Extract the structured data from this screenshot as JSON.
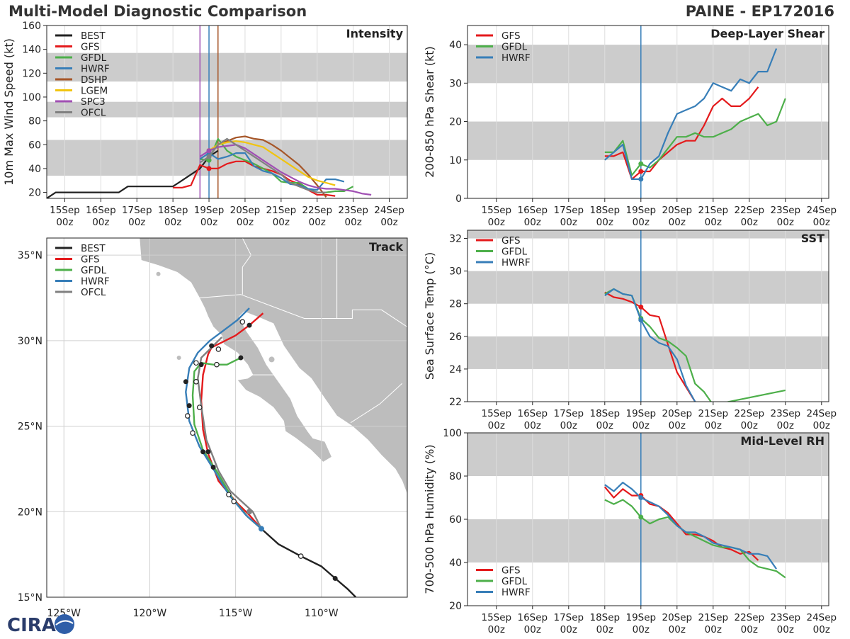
{
  "header": {
    "title": "Multi-Model Diagnostic Comparison",
    "storm": "PAINE - EP172016"
  },
  "logo": {
    "text": "CIRA"
  },
  "colors": {
    "BEST": "#222222",
    "GFS": "#e41a1c",
    "GFDL": "#4daf4a",
    "HWRF": "#377eb8",
    "DSHP": "#a65628",
    "LGEM": "#f1c40f",
    "SPC3": "#a04fb3",
    "OFCL": "#808080"
  },
  "time_ticks": [
    "15Sep\n00z",
    "16Sep\n00z",
    "17Sep\n00z",
    "18Sep\n00z",
    "19Sep\n00z",
    "20Sep\n00z",
    "21Sep\n00z",
    "22Sep\n00z",
    "23Sep\n00z",
    "24Sep\n00z"
  ],
  "chart_data": [
    {
      "id": "intensity",
      "type": "line",
      "title": "Intensity",
      "xlabel": "",
      "ylabel": "10m Max Wind Speed (kt)",
      "xlim": [
        -0.5,
        9.5
      ],
      "ylim": [
        15,
        160
      ],
      "yticks": [
        20,
        40,
        60,
        80,
        100,
        120,
        140,
        160
      ],
      "bands": [
        [
          34,
          64
        ],
        [
          83,
          96
        ],
        [
          113,
          137
        ]
      ],
      "vlines": [
        {
          "x": 3.75,
          "color": "#a04fb3"
        },
        {
          "x": 4.0,
          "color": "#377eb8"
        },
        {
          "x": 4.25,
          "color": "#a65628"
        }
      ],
      "legend": [
        "BEST",
        "GFS",
        "GFDL",
        "HWRF",
        "DSHP",
        "LGEM",
        "SPC3",
        "OFCL"
      ],
      "series": [
        {
          "name": "BEST",
          "x": [
            -0.5,
            -0.25,
            0,
            0.25,
            0.5,
            0.75,
            1,
            1.25,
            1.5,
            1.75,
            2,
            2.25,
            2.5,
            2.75,
            3,
            3.25,
            3.5,
            3.75,
            4,
            4.25
          ],
          "y": [
            15,
            20,
            20,
            20,
            20,
            20,
            20,
            20,
            20,
            25,
            25,
            25,
            25,
            25,
            25,
            30,
            35,
            40,
            50,
            55
          ]
        },
        {
          "name": "GFS",
          "x": [
            3,
            3.25,
            3.5,
            3.75,
            4,
            4.25,
            4.5,
            4.75,
            5,
            5.25,
            5.5,
            5.75,
            6,
            6.25,
            6.5,
            6.75,
            7,
            7.25,
            7.5
          ],
          "y": [
            24,
            24,
            26,
            43,
            40,
            40,
            44,
            46,
            46,
            42,
            40,
            38,
            35,
            30,
            27,
            22,
            18,
            18,
            17
          ]
        },
        {
          "name": "GFDL",
          "x": [
            3.75,
            4,
            4.25,
            4.5,
            4.75,
            5,
            5.25,
            5.5,
            5.75,
            6,
            6.25,
            6.5,
            6.75,
            7,
            7.25,
            7.5,
            7.75,
            8
          ],
          "y": [
            48,
            47,
            65,
            55,
            50,
            47,
            44,
            40,
            36,
            29,
            28,
            28,
            23,
            20,
            20,
            21,
            21,
            25
          ]
        },
        {
          "name": "HWRF",
          "x": [
            3.75,
            4,
            4.25,
            4.5,
            4.75,
            5,
            5.25,
            5.5,
            5.75,
            6,
            6.25,
            6.5,
            6.75,
            7,
            7.25,
            7.5,
            7.75
          ],
          "y": [
            48,
            53,
            48,
            50,
            53,
            53,
            42,
            38,
            36,
            32,
            27,
            26,
            23,
            22,
            31,
            31,
            29
          ]
        },
        {
          "name": "DSHP",
          "x": [
            4,
            4.25,
            4.5,
            4.75,
            5,
            5.25,
            5.5,
            5.75,
            6,
            6.25,
            6.5,
            6.75,
            7,
            7.25
          ],
          "y": [
            55,
            60,
            63,
            66,
            67,
            65,
            64,
            60,
            55,
            49,
            43,
            35,
            26,
            16
          ]
        },
        {
          "name": "LGEM",
          "x": [
            4,
            4.25,
            4.5,
            4.75,
            5,
            5.25,
            5.5,
            5.75,
            6,
            6.25,
            6.5,
            6.75,
            7,
            7.25,
            7.5
          ],
          "y": [
            55,
            60,
            62,
            63,
            62,
            60,
            58,
            53,
            48,
            43,
            38,
            33,
            30,
            28,
            26
          ]
        },
        {
          "name": "SPC3",
          "x": [
            3.75,
            4,
            4.25,
            4.5,
            4.75,
            5,
            5.25,
            5.5,
            5.75,
            6,
            6.25,
            6.5,
            6.75,
            7,
            7.25,
            7.5,
            7.75,
            8,
            8.25,
            8.5
          ],
          "y": [
            50,
            55,
            58,
            59,
            60,
            57,
            52,
            47,
            42,
            37,
            33,
            29,
            26,
            24,
            23,
            23,
            22,
            21,
            19,
            18
          ]
        },
        {
          "name": "OFCL",
          "x": [
            3.75,
            4,
            4.25,
            4.5,
            4.75,
            5,
            5.25,
            5.5,
            5.75,
            6,
            6.25,
            6.5,
            6.75,
            7,
            7.25
          ],
          "y": [
            45,
            50,
            60,
            65,
            60,
            55,
            50,
            45,
            40,
            35,
            28,
            25,
            22,
            20,
            20
          ]
        }
      ]
    },
    {
      "id": "shear",
      "type": "line",
      "title": "Deep-Layer Shear",
      "xlabel": "",
      "ylabel": "200-850 hPa Shear (kt)",
      "xlim": [
        -0.8,
        9.2
      ],
      "ylim": [
        0,
        45
      ],
      "yticks": [
        0,
        10,
        20,
        30,
        40
      ],
      "bands": [
        [
          10,
          20
        ],
        [
          30,
          40
        ]
      ],
      "vlines": [
        {
          "x": 4.0,
          "color": "#377eb8"
        }
      ],
      "legend": [
        "GFS",
        "GFDL",
        "HWRF"
      ],
      "series": [
        {
          "name": "GFS",
          "x": [
            3,
            3.25,
            3.5,
            3.75,
            4,
            4.25,
            4.5,
            4.75,
            5,
            5.25,
            5.5,
            5.75,
            6,
            6.25,
            6.5,
            6.75,
            7,
            7.25
          ],
          "y": [
            11,
            11,
            12,
            5,
            7,
            7,
            10,
            12,
            14,
            15,
            15,
            19,
            24,
            26,
            24,
            24,
            26,
            29
          ]
        },
        {
          "name": "GFDL",
          "x": [
            3,
            3.25,
            3.5,
            3.75,
            4,
            4.25,
            4.5,
            4.75,
            5,
            5.25,
            5.5,
            5.75,
            6,
            6.25,
            6.5,
            6.75,
            7,
            7.25,
            7.5,
            7.75,
            8
          ],
          "y": [
            12,
            12,
            15,
            6,
            9,
            8,
            10,
            13,
            16,
            16,
            17,
            16,
            16,
            17,
            18,
            20,
            21,
            22,
            19,
            20,
            26
          ]
        },
        {
          "name": "HWRF",
          "x": [
            3,
            3.25,
            3.5,
            3.75,
            4,
            4.25,
            4.5,
            4.75,
            5,
            5.25,
            5.5,
            5.75,
            6,
            6.25,
            6.5,
            6.75,
            7,
            7.25,
            7.5,
            7.75
          ],
          "y": [
            10,
            12,
            14,
            5,
            5,
            9,
            11,
            17,
            22,
            23,
            24,
            26,
            30,
            29,
            28,
            31,
            30,
            33,
            33,
            39
          ]
        }
      ]
    },
    {
      "id": "sst",
      "type": "line",
      "title": "SST",
      "xlabel": "",
      "ylabel": "Sea Surface Temp (°C)",
      "xlim": [
        -0.8,
        9.2
      ],
      "ylim": [
        22,
        32.5
      ],
      "yticks": [
        22,
        24,
        26,
        28,
        30,
        32
      ],
      "bands": [
        [
          24,
          26
        ],
        [
          28,
          30
        ],
        [
          32,
          32.5
        ]
      ],
      "vlines": [
        {
          "x": 4.0,
          "color": "#377eb8"
        }
      ],
      "legend": [
        "GFS",
        "GFDL",
        "HWRF"
      ],
      "series": [
        {
          "name": "GFS",
          "x": [
            3,
            3.25,
            3.5,
            3.75,
            4,
            4.25,
            4.5,
            4.75,
            5,
            5.25,
            5.5
          ],
          "y": [
            28.7,
            28.4,
            28.3,
            28.1,
            27.8,
            27.3,
            27.2,
            25.5,
            23.8,
            22.9,
            22.0
          ]
        },
        {
          "name": "GFDL",
          "x": [
            3,
            3.25,
            3.5,
            3.75,
            4,
            4.25,
            4.5,
            4.75,
            5,
            5.25,
            5.5,
            5.75,
            6,
            8
          ],
          "y": [
            28.6,
            28.9,
            28.6,
            28.5,
            27.1,
            26.6,
            25.9,
            25.7,
            25.3,
            24.8,
            23.1,
            22.6,
            21.8,
            22.7
          ]
        },
        {
          "name": "HWRF",
          "x": [
            3,
            3.25,
            3.5,
            3.75,
            4,
            4.25,
            4.5,
            4.75,
            5,
            5.25,
            5.5
          ],
          "y": [
            28.5,
            28.9,
            28.6,
            28.5,
            27.0,
            26.0,
            25.6,
            25.4,
            24.6,
            23.0,
            22.0
          ]
        }
      ]
    },
    {
      "id": "rh",
      "type": "line",
      "title": "Mid-Level RH",
      "xlabel": "",
      "ylabel": "700-500 hPa Humidity (%)",
      "xlim": [
        -0.8,
        9.2
      ],
      "ylim": [
        20,
        100
      ],
      "yticks": [
        20,
        40,
        60,
        80,
        100
      ],
      "bands": [
        [
          40,
          60
        ],
        [
          80,
          100
        ]
      ],
      "vlines": [
        {
          "x": 4.0,
          "color": "#377eb8"
        }
      ],
      "legend": [
        "GFS",
        "GFDL",
        "HWRF"
      ],
      "legend_position": "lower-left",
      "series": [
        {
          "name": "GFS",
          "x": [
            3,
            3.25,
            3.5,
            3.75,
            4,
            4.25,
            4.5,
            4.75,
            5,
            5.25,
            5.5,
            5.75,
            6,
            6.25,
            6.5,
            6.75,
            7,
            7.25
          ],
          "y": [
            75,
            70,
            74,
            71,
            71,
            67,
            66,
            63,
            58,
            53,
            53,
            52,
            50,
            47,
            46,
            44,
            45,
            41
          ]
        },
        {
          "name": "GFDL",
          "x": [
            3,
            3.25,
            3.5,
            3.75,
            4,
            4.25,
            4.5,
            4.75,
            5,
            5.25,
            5.5,
            5.75,
            6,
            6.25,
            6.5,
            6.75,
            7,
            7.25,
            7.5,
            7.75,
            8
          ],
          "y": [
            69,
            67,
            69,
            66,
            61,
            58,
            60,
            61,
            57,
            54,
            52,
            50,
            48,
            47,
            47,
            46,
            41,
            38,
            37,
            36,
            33
          ]
        },
        {
          "name": "HWRF",
          "x": [
            3,
            3.25,
            3.5,
            3.75,
            4,
            4.25,
            4.5,
            4.75,
            5,
            5.25,
            5.5,
            5.75,
            6,
            6.25,
            6.5,
            6.75,
            7,
            7.25,
            7.5,
            7.75
          ],
          "y": [
            76,
            73,
            77,
            74,
            70,
            68,
            66,
            62,
            57,
            54,
            54,
            52,
            49,
            48,
            47,
            46,
            44,
            44,
            43,
            37
          ]
        }
      ]
    },
    {
      "id": "track",
      "type": "scatter",
      "title": "Track",
      "xlabel": "",
      "ylabel": "",
      "xlim": [
        -126,
        -105
      ],
      "ylim": [
        15,
        36
      ],
      "xticks": [
        -125,
        -120,
        -115,
        -110
      ],
      "xtick_labels": [
        "125°W",
        "120°W",
        "115°W",
        "110°W"
      ],
      "yticks": [
        15,
        20,
        25,
        30,
        35
      ],
      "ytick_labels": [
        "15°N",
        "20°N",
        "25°N",
        "30°N",
        "35°N"
      ],
      "legend": [
        "BEST",
        "GFS",
        "GFDL",
        "HWRF",
        "OFCL"
      ],
      "series": [
        {
          "name": "BEST",
          "lon": [
            -113.5,
            -112.5,
            -111.2,
            -110.0,
            -109.2,
            -108.5,
            -108.0
          ],
          "lat": [
            19.0,
            18.1,
            17.4,
            16.8,
            16.1,
            15.5,
            15.0
          ],
          "filled": [
            -109.2
          ],
          "open": [
            -111.2
          ]
        },
        {
          "name": "GFS",
          "lon": [
            -113.5,
            -114.2,
            -115.0,
            -116.0,
            -116.6,
            -116.9,
            -117.0,
            -116.9,
            -116.6,
            -116.4,
            -115.8,
            -115.0,
            -114.2,
            -113.4
          ],
          "lat": [
            19.0,
            19.8,
            20.6,
            21.8,
            23.4,
            24.8,
            26.5,
            28.0,
            29.2,
            29.6,
            29.9,
            30.3,
            30.9,
            31.6
          ]
        },
        {
          "name": "GFDL",
          "lon": [
            -113.5,
            -114.3,
            -115.2,
            -116.0,
            -116.9,
            -117.4,
            -117.5,
            -117.4,
            -117.0,
            -116.3,
            -115.5,
            -114.9,
            -114.6
          ],
          "lat": [
            19.0,
            19.7,
            20.8,
            22.2,
            23.6,
            25.1,
            26.8,
            28.2,
            28.7,
            28.6,
            28.6,
            28.9,
            29.0
          ]
        },
        {
          "name": "HWRF",
          "lon": [
            -113.5,
            -114.4,
            -115.4,
            -116.3,
            -117.1,
            -117.7,
            -117.9,
            -117.7,
            -117.2,
            -116.5,
            -115.7,
            -114.9,
            -114.2
          ],
          "lat": [
            19.0,
            19.8,
            21.0,
            22.5,
            23.8,
            25.3,
            27.0,
            28.4,
            29.3,
            30.0,
            30.6,
            31.2,
            31.9
          ]
        },
        {
          "name": "OFCL",
          "lon": [
            -113.5,
            -114.0,
            -115.3,
            -116.0,
            -116.7,
            -117.0,
            -117.2,
            -117.0,
            -116.4,
            -115.8
          ],
          "lat": [
            19.0,
            20.0,
            21.2,
            22.4,
            24.2,
            26.2,
            27.8,
            29.0,
            29.6,
            30.2
          ]
        }
      ],
      "markers_filled": [
        [
          -114.2,
          30.9
        ],
        [
          -116.4,
          29.7
        ],
        [
          -114.7,
          29.0
        ],
        [
          -117.0,
          28.6
        ],
        [
          -117.9,
          27.6
        ],
        [
          -117.7,
          26.2
        ],
        [
          -116.9,
          23.5
        ],
        [
          -116.6,
          23.5
        ],
        [
          -116.3,
          22.6
        ],
        [
          -109.2,
          16.1
        ]
      ],
      "markers_open": [
        [
          -114.6,
          31.1
        ],
        [
          -116.0,
          29.5
        ],
        [
          -117.3,
          28.7
        ],
        [
          -116.1,
          28.6
        ],
        [
          -117.3,
          27.6
        ],
        [
          -117.1,
          26.1
        ],
        [
          -117.8,
          25.6
        ],
        [
          -117.5,
          24.6
        ],
        [
          -115.4,
          21.0
        ],
        [
          -115.1,
          20.6
        ],
        [
          -111.2,
          17.4
        ]
      ],
      "markers_current": [
        [
          -113.5,
          19.0
        ],
        [
          -114.2,
          20.0
        ]
      ]
    }
  ]
}
